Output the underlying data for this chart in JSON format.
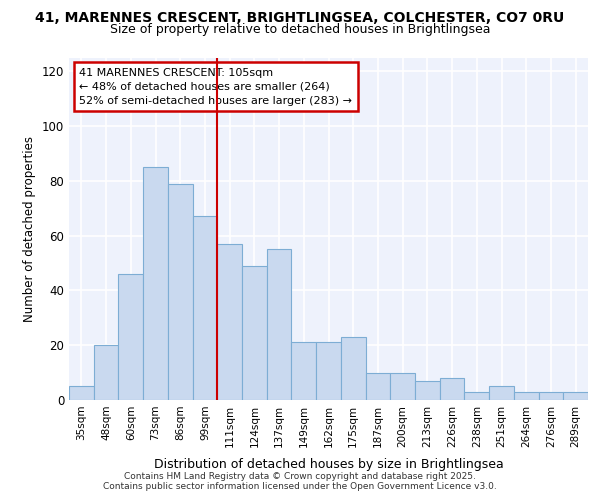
{
  "title": "41, MARENNES CRESCENT, BRIGHTLINGSEA, COLCHESTER, CO7 0RU",
  "subtitle": "Size of property relative to detached houses in Brightlingsea",
  "xlabel": "Distribution of detached houses by size in Brightlingsea",
  "ylabel": "Number of detached properties",
  "categories": [
    "35sqm",
    "48sqm",
    "60sqm",
    "73sqm",
    "86sqm",
    "99sqm",
    "111sqm",
    "124sqm",
    "137sqm",
    "149sqm",
    "162sqm",
    "175sqm",
    "187sqm",
    "200sqm",
    "213sqm",
    "226sqm",
    "238sqm",
    "251sqm",
    "264sqm",
    "276sqm",
    "289sqm"
  ],
  "values": [
    5,
    20,
    46,
    85,
    79,
    67,
    57,
    49,
    55,
    21,
    21,
    23,
    10,
    10,
    7,
    8,
    3,
    5,
    3,
    3,
    3
  ],
  "bar_color": "#c9d9ef",
  "bar_edge_color": "#7dadd4",
  "vline_x": 5.5,
  "vline_color": "#cc0000",
  "annotation_title": "41 MARENNES CRESCENT: 105sqm",
  "annotation_line1": "← 48% of detached houses are smaller (264)",
  "annotation_line2": "52% of semi-detached houses are larger (283) →",
  "annotation_box_color": "#cc0000",
  "ylim": [
    0,
    125
  ],
  "yticks": [
    0,
    20,
    40,
    60,
    80,
    100,
    120
  ],
  "bg_color": "#ffffff",
  "plot_bg_color": "#eef2fc",
  "grid_color": "#ffffff",
  "footer1": "Contains HM Land Registry data © Crown copyright and database right 2025.",
  "footer2": "Contains public sector information licensed under the Open Government Licence v3.0."
}
